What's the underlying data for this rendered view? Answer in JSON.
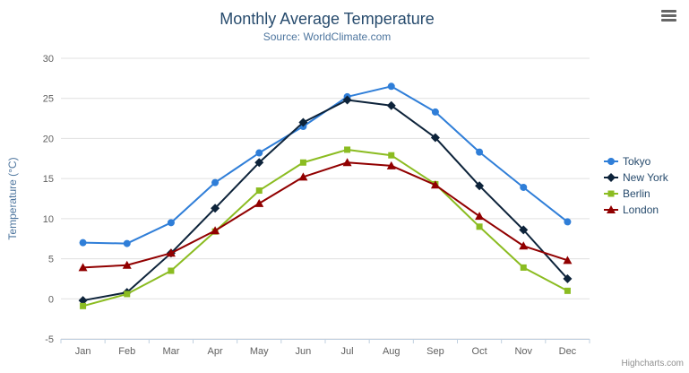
{
  "chart": {
    "credits": "Highcharts.com",
    "export_menu_icon": "hamburger-menu"
  },
  "chart_data": {
    "type": "line",
    "title": "Monthly Average Temperature",
    "subtitle": "Source: WorldClimate.com",
    "categories": [
      "Jan",
      "Feb",
      "Mar",
      "Apr",
      "May",
      "Jun",
      "Jul",
      "Aug",
      "Sep",
      "Oct",
      "Nov",
      "Dec"
    ],
    "xlabel": "",
    "ylabel": "Temperature (°C)",
    "ylim": [
      -5,
      30
    ],
    "ytick_interval": 5,
    "grid": true,
    "legend_position": "right",
    "series": [
      {
        "name": "Tokyo",
        "color": "#2f7ed8",
        "marker": "circle",
        "values": [
          7.0,
          6.9,
          9.5,
          14.5,
          18.2,
          21.5,
          25.2,
          26.5,
          23.3,
          18.3,
          13.9,
          9.6
        ]
      },
      {
        "name": "New York",
        "color": "#0d233a",
        "marker": "diamond",
        "values": [
          -0.2,
          0.8,
          5.7,
          11.3,
          17.0,
          22.0,
          24.8,
          24.1,
          20.1,
          14.1,
          8.6,
          2.5
        ]
      },
      {
        "name": "Berlin",
        "color": "#8bbc21",
        "marker": "square",
        "values": [
          -0.9,
          0.6,
          3.5,
          8.4,
          13.5,
          17.0,
          18.6,
          17.9,
          14.3,
          9.0,
          3.9,
          1.0
        ]
      },
      {
        "name": "London",
        "color": "#910000",
        "marker": "triangle",
        "values": [
          3.9,
          4.2,
          5.7,
          8.5,
          11.9,
          15.2,
          17.0,
          16.6,
          14.2,
          10.3,
          6.6,
          4.8
        ]
      }
    ]
  }
}
